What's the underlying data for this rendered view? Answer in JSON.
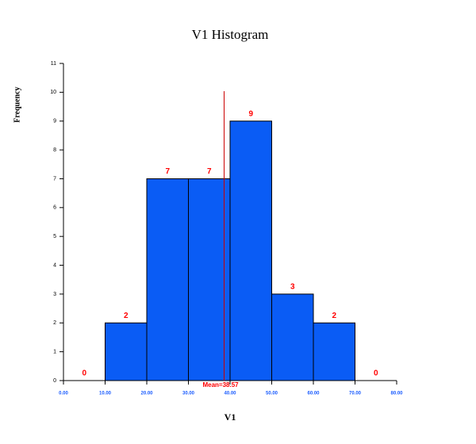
{
  "chart_data": {
    "type": "histogram",
    "title": "V1 Histogram",
    "x_label": "V1",
    "y_label": "Frequency",
    "bins": [
      0,
      10,
      20,
      30,
      40,
      50,
      60,
      70,
      80
    ],
    "values": [
      0,
      2,
      7,
      7,
      9,
      3,
      2,
      0
    ],
    "color": "#0a5cf5",
    "label_color": "#ff0000",
    "xtick_color": "#1a5cff",
    "mean": {
      "value": 38.57,
      "label": "Mean=38.57"
    },
    "mean_color": "#cc0000",
    "xlim": [
      0,
      80
    ],
    "xticks": [
      {
        "value": 0,
        "label": "0.00"
      },
      {
        "value": 10,
        "label": "10.00"
      },
      {
        "value": 20,
        "label": "20.00"
      },
      {
        "value": 30,
        "label": "30.00"
      },
      {
        "value": 40,
        "label": "40.00"
      },
      {
        "value": 50,
        "label": "50.00"
      },
      {
        "value": 60,
        "label": "60.00"
      },
      {
        "value": 70,
        "label": "70.00"
      },
      {
        "value": 80,
        "label": "80.00"
      }
    ],
    "ylim": [
      0,
      11
    ],
    "yticks": [
      0,
      1,
      2,
      3,
      4,
      5,
      6,
      7,
      8,
      9,
      10,
      11
    ]
  }
}
